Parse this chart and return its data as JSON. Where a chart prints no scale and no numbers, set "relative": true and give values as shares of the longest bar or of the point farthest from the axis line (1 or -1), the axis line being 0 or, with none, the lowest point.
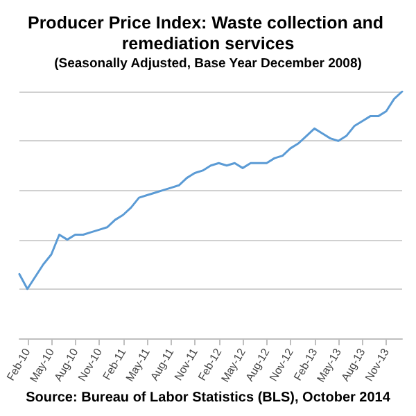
{
  "chart_data": {
    "type": "line",
    "title": "Producer Price Index: Waste collection and remediation services",
    "subtitle": "(Seasonally Adjusted, Base Year December 2008)",
    "annotations": [
      "Source: Bureau of Labor Statistics (BLS), October 2014"
    ],
    "categories": [
      null,
      "Feb-10",
      null,
      null,
      "May-10",
      null,
      null,
      "Aug-10",
      null,
      null,
      "Nov-10",
      null,
      null,
      "Feb-11",
      null,
      null,
      "May-11",
      null,
      null,
      "Aug-11",
      null,
      null,
      "Nov-11",
      null,
      null,
      "Feb-12",
      null,
      null,
      "May-12",
      null,
      null,
      "Aug-12",
      null,
      null,
      "Nov-12",
      null,
      null,
      "Feb-13",
      null,
      null,
      "May-13",
      null,
      null,
      "Aug-13",
      null,
      null,
      "Nov-13",
      null,
      null
    ],
    "relative": true,
    "series": [
      {
        "color": "#5b9bd5",
        "values": [
          0.26,
          0.2,
          0.25,
          0.3,
          0.34,
          0.42,
          0.4,
          0.42,
          0.42,
          0.43,
          0.44,
          0.45,
          0.48,
          0.5,
          0.53,
          0.57,
          0.58,
          0.59,
          0.6,
          0.61,
          0.62,
          0.65,
          0.67,
          0.68,
          0.7,
          0.71,
          0.7,
          0.71,
          0.69,
          0.71,
          0.71,
          0.71,
          0.73,
          0.74,
          0.77,
          0.79,
          0.82,
          0.85,
          0.83,
          0.81,
          0.8,
          0.82,
          0.86,
          0.88,
          0.9,
          0.9,
          0.92,
          0.97,
          1
        ]
      }
    ],
    "grid": "y",
    "marker": "none",
    "line_style": "solid"
  }
}
